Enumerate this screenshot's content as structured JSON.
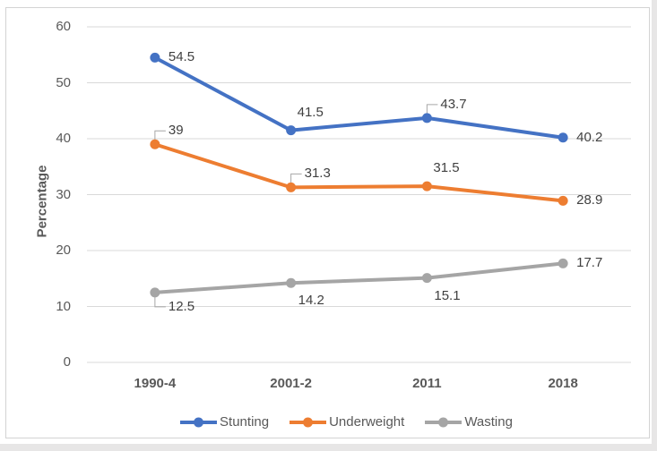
{
  "chart_data": {
    "type": "line",
    "title": "",
    "xlabel": "",
    "ylabel": "Percentage",
    "categories": [
      "1990-4",
      "2001-2",
      "2011",
      "2018"
    ],
    "series": [
      {
        "name": "Stunting",
        "color": "#4472C4",
        "values": [
          54.5,
          41.5,
          43.7,
          40.2
        ],
        "label_placements": [
          "right",
          "above",
          "callout-above",
          "right"
        ]
      },
      {
        "name": "Underweight",
        "color": "#ED7D31",
        "values": [
          39,
          31.3,
          31.5,
          28.9
        ],
        "label_placements": [
          "callout-above",
          "callout-above",
          "above",
          "right"
        ]
      },
      {
        "name": "Wasting",
        "color": "#A5A5A5",
        "values": [
          12.5,
          14.2,
          15.1,
          17.7
        ],
        "label_placements": [
          "callout-below",
          "below",
          "below",
          "right"
        ]
      }
    ],
    "y_axis": {
      "min": 0,
      "max": 60,
      "step": 10,
      "ticks": [
        0,
        10,
        20,
        30,
        40,
        50,
        60
      ]
    },
    "grid": true,
    "legend_position": "bottom",
    "legend_entries": [
      "Stunting",
      "Underweight",
      "Wasting"
    ]
  },
  "colors": {
    "gridline": "#D9D9D9",
    "axis_line": "#D9D9D9",
    "leader_line": "#A6A6A6",
    "tick_text": "#595959",
    "category_text": "#595959",
    "data_label_text": "#404040",
    "legend_text": "#595959",
    "frame_border": "#D3D3D3",
    "canvas_background": "#FFFFFF",
    "outer_background": "#E7E6E6"
  }
}
